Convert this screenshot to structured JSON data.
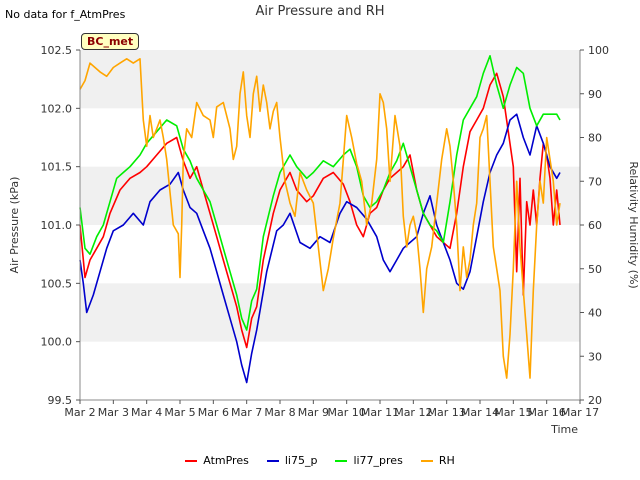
{
  "header": {
    "corner_note": "No data for f_AtmPres",
    "title": "Air Pressure and RH",
    "badge": "BC_met"
  },
  "chart_data": {
    "type": "line",
    "title": "Air Pressure and RH",
    "xlabel": "Time",
    "ylabel": "Air Pressure (kPa)",
    "y2label": "Relativity Humidity (%)",
    "x_ticks": [
      "Mar 2",
      "Mar 3",
      "Mar 4",
      "Mar 5",
      "Mar 6",
      "Mar 7",
      "Mar 8",
      "Mar 9",
      "Mar 10",
      "Mar 11",
      "Mar 12",
      "Mar 13",
      "Mar 14",
      "Mar 15",
      "Mar 16",
      "Mar 17"
    ],
    "xlim": [
      0,
      15
    ],
    "ylim": [
      99.5,
      102.5
    ],
    "y_ticks": [
      99.5,
      100.0,
      100.5,
      101.0,
      101.5,
      102.0,
      102.5
    ],
    "y2lim": [
      20,
      100
    ],
    "y2_ticks": [
      20,
      30,
      40,
      50,
      60,
      70,
      80,
      90,
      100
    ],
    "grid": "horizontal bands",
    "legend": "bottom",
    "series": [
      {
        "name": "AtmPres",
        "axis": "left",
        "color": "#ff0000",
        "x": [
          0.0,
          0.15,
          0.3,
          0.5,
          0.7,
          0.9,
          1.2,
          1.5,
          1.8,
          2.0,
          2.3,
          2.6,
          2.9,
          3.1,
          3.3,
          3.5,
          3.7,
          3.9,
          4.1,
          4.3,
          4.5,
          4.7,
          4.85,
          5.0,
          5.15,
          5.3,
          5.5,
          5.8,
          6.0,
          6.3,
          6.5,
          6.8,
          7.0,
          7.3,
          7.6,
          7.9,
          8.1,
          8.3,
          8.5,
          8.7,
          8.9,
          9.1,
          9.3,
          9.5,
          9.7,
          9.9,
          10.1,
          10.3,
          10.5,
          10.7,
          10.9,
          11.1,
          11.3,
          11.5,
          11.7,
          11.9,
          12.1,
          12.3,
          12.5,
          12.7,
          12.85,
          13.0,
          13.1,
          13.2,
          13.3,
          13.4,
          13.5,
          13.6,
          13.7,
          13.8,
          13.9,
          14.0,
          14.1,
          14.2,
          14.3,
          14.4
        ],
        "values": [
          101.0,
          100.55,
          100.7,
          100.8,
          100.9,
          101.1,
          101.3,
          101.4,
          101.45,
          101.5,
          101.6,
          101.7,
          101.75,
          101.55,
          101.4,
          101.5,
          101.3,
          101.1,
          100.9,
          100.7,
          100.5,
          100.3,
          100.1,
          99.95,
          100.2,
          100.3,
          100.7,
          101.1,
          101.3,
          101.45,
          101.3,
          101.2,
          101.25,
          101.4,
          101.45,
          101.35,
          101.2,
          101.0,
          100.9,
          101.1,
          101.15,
          101.3,
          101.4,
          101.45,
          101.5,
          101.6,
          101.3,
          101.1,
          101.0,
          100.9,
          100.85,
          100.8,
          101.1,
          101.5,
          101.8,
          101.9,
          102.0,
          102.2,
          102.3,
          102.1,
          101.8,
          101.5,
          100.6,
          101.4,
          100.4,
          101.2,
          101.0,
          101.3,
          101.0,
          101.4,
          101.7,
          101.6,
          101.4,
          101.0,
          101.3,
          101.0
        ]
      },
      {
        "name": "li75_p",
        "axis": "left",
        "color": "#0000cc",
        "x": [
          0.0,
          0.1,
          0.2,
          0.4,
          0.6,
          0.8,
          1.0,
          1.3,
          1.6,
          1.9,
          2.1,
          2.4,
          2.7,
          2.95,
          3.1,
          3.3,
          3.5,
          3.7,
          3.9,
          4.1,
          4.3,
          4.5,
          4.7,
          4.85,
          5.0,
          5.15,
          5.3,
          5.6,
          5.9,
          6.1,
          6.3,
          6.6,
          6.9,
          7.2,
          7.5,
          7.8,
          8.0,
          8.3,
          8.6,
          8.9,
          9.1,
          9.3,
          9.5,
          9.7,
          9.9,
          10.1,
          10.3,
          10.5,
          10.7,
          10.9,
          11.1,
          11.3,
          11.5,
          11.7,
          11.9,
          12.1,
          12.3,
          12.5,
          12.7,
          12.9,
          13.1,
          13.3,
          13.5,
          13.7,
          13.9,
          14.1,
          14.3,
          14.4
        ],
        "values": [
          100.7,
          100.5,
          100.25,
          100.4,
          100.6,
          100.8,
          100.95,
          101.0,
          101.1,
          101.0,
          101.2,
          101.3,
          101.35,
          101.45,
          101.3,
          101.15,
          101.1,
          100.95,
          100.8,
          100.6,
          100.4,
          100.2,
          100.0,
          99.8,
          99.65,
          99.9,
          100.1,
          100.6,
          100.95,
          101.0,
          101.1,
          100.85,
          100.8,
          100.9,
          100.85,
          101.1,
          101.2,
          101.15,
          101.05,
          100.9,
          100.7,
          100.6,
          100.7,
          100.8,
          100.85,
          100.9,
          101.1,
          101.25,
          101.0,
          100.85,
          100.7,
          100.5,
          100.45,
          100.6,
          100.9,
          101.2,
          101.45,
          101.6,
          101.7,
          101.9,
          101.95,
          101.75,
          101.6,
          101.85,
          101.7,
          101.5,
          101.4,
          101.45
        ]
      },
      {
        "name": "li77_pres",
        "axis": "left",
        "color": "#00ee00",
        "x": [
          0.0,
          0.15,
          0.3,
          0.5,
          0.7,
          0.9,
          1.1,
          1.3,
          1.5,
          1.8,
          2.0,
          2.3,
          2.6,
          2.9,
          3.1,
          3.3,
          3.5,
          3.7,
          3.9,
          4.1,
          4.3,
          4.5,
          4.7,
          4.85,
          5.0,
          5.15,
          5.3,
          5.5,
          5.8,
          6.0,
          6.3,
          6.5,
          6.8,
          7.0,
          7.3,
          7.6,
          7.9,
          8.1,
          8.3,
          8.5,
          8.7,
          8.9,
          9.1,
          9.3,
          9.5,
          9.7,
          9.9,
          10.1,
          10.3,
          10.5,
          10.7,
          10.9,
          11.1,
          11.3,
          11.5,
          11.7,
          11.9,
          12.1,
          12.3,
          12.5,
          12.7,
          12.9,
          13.1,
          13.3,
          13.5,
          13.7,
          13.9,
          14.1,
          14.3,
          14.4
        ],
        "values": [
          101.15,
          100.8,
          100.75,
          100.9,
          101.0,
          101.2,
          101.4,
          101.45,
          101.5,
          101.6,
          101.7,
          101.8,
          101.9,
          101.85,
          101.65,
          101.55,
          101.4,
          101.3,
          101.2,
          101.0,
          100.8,
          100.6,
          100.4,
          100.2,
          100.1,
          100.35,
          100.45,
          100.9,
          101.25,
          101.45,
          101.6,
          101.5,
          101.4,
          101.45,
          101.55,
          101.5,
          101.6,
          101.65,
          101.5,
          101.25,
          101.15,
          101.2,
          101.3,
          101.45,
          101.55,
          101.7,
          101.5,
          101.3,
          101.1,
          101.0,
          100.95,
          100.85,
          101.2,
          101.6,
          101.9,
          102.0,
          102.1,
          102.3,
          102.45,
          102.2,
          102.0,
          102.2,
          102.35,
          102.3,
          102.0,
          101.85,
          101.95,
          101.95,
          101.95,
          101.9
        ]
      },
      {
        "name": "RH",
        "axis": "right",
        "color": "#ffa500",
        "x": [
          0.0,
          0.15,
          0.3,
          0.45,
          0.6,
          0.8,
          1.0,
          1.2,
          1.4,
          1.6,
          1.8,
          1.9,
          2.0,
          2.1,
          2.2,
          2.3,
          2.4,
          2.5,
          2.6,
          2.8,
          2.95,
          3.0,
          3.05,
          3.1,
          3.2,
          3.35,
          3.5,
          3.7,
          3.9,
          4.0,
          4.1,
          4.3,
          4.5,
          4.6,
          4.7,
          4.8,
          4.9,
          5.0,
          5.1,
          5.2,
          5.3,
          5.4,
          5.5,
          5.6,
          5.7,
          5.8,
          5.9,
          6.0,
          6.15,
          6.3,
          6.45,
          6.6,
          6.8,
          7.0,
          7.15,
          7.3,
          7.45,
          7.6,
          7.8,
          8.0,
          8.15,
          8.3,
          8.45,
          8.6,
          8.75,
          8.9,
          9.0,
          9.1,
          9.2,
          9.3,
          9.45,
          9.6,
          9.7,
          9.8,
          9.9,
          10.0,
          10.1,
          10.2,
          10.3,
          10.4,
          10.55,
          10.7,
          10.85,
          11.0,
          11.1,
          11.2,
          11.3,
          11.4,
          11.5,
          11.6,
          11.7,
          11.8,
          11.9,
          12.0,
          12.1,
          12.2,
          12.3,
          12.4,
          12.5,
          12.6,
          12.7,
          12.8,
          12.9,
          13.0,
          13.1,
          13.2,
          13.3,
          13.4,
          13.5,
          13.6,
          13.7,
          13.8,
          13.9,
          14.0,
          14.1,
          14.2,
          14.3,
          14.4
        ],
        "values": [
          91,
          93,
          97,
          96,
          95,
          94,
          96,
          97,
          98,
          97,
          98,
          84,
          78,
          85,
          80,
          82,
          84,
          80,
          75,
          60,
          58,
          48,
          60,
          75,
          82,
          80,
          88,
          85,
          84,
          80,
          87,
          88,
          82,
          75,
          78,
          90,
          95,
          85,
          80,
          90,
          94,
          86,
          92,
          88,
          82,
          86,
          88,
          80,
          70,
          65,
          62,
          72,
          68,
          65,
          55,
          45,
          50,
          57,
          65,
          85,
          80,
          74,
          70,
          60,
          65,
          75,
          90,
          88,
          82,
          70,
          85,
          78,
          62,
          55,
          60,
          62,
          58,
          50,
          40,
          50,
          55,
          65,
          75,
          82,
          78,
          70,
          60,
          45,
          55,
          48,
          52,
          60,
          65,
          80,
          82,
          85,
          70,
          55,
          50,
          45,
          30,
          25,
          35,
          50,
          70,
          55,
          45,
          35,
          25,
          45,
          60,
          70,
          65,
          80,
          75,
          70,
          60,
          65
        ]
      }
    ]
  }
}
